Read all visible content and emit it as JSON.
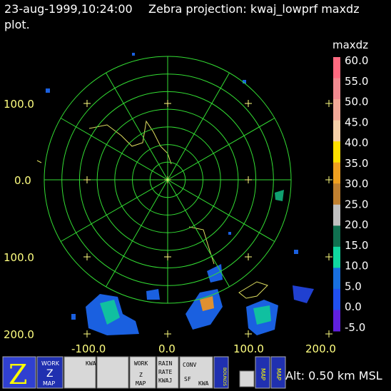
{
  "header": {
    "time": "23-aug-1999,10:24:00",
    "title": "Zebra projection: kwaj_lowprf maxdz",
    "title_cont": "plot."
  },
  "plot": {
    "y_labels": [
      "100.0",
      "0.0",
      "100.0",
      "200.0"
    ],
    "x_labels": [
      "-100.0",
      "0.0",
      "100.0",
      "200.0"
    ]
  },
  "colorbar": {
    "title": "maxdz",
    "labels": [
      "60.0",
      "55.0",
      "50.0",
      "45.0",
      "40.0",
      "35.0",
      "30.0",
      "25.0",
      "20.0",
      "15.0",
      "10.0",
      "5.0",
      "0.0",
      "-5.0"
    ],
    "colors": [
      "#ff6a80",
      "#f08a90",
      "#f2a898",
      "#f5d0a8",
      "#ffe000",
      "#f0a020",
      "#c08030",
      "#c0c0c0",
      "#107050",
      "#10d8a0",
      "#1870e0",
      "#2050f0",
      "#6020e0"
    ]
  },
  "toolbar": {
    "work1": [
      "WORK",
      "Z",
      "MAP"
    ],
    "kwaj": "KWAJ",
    "work2": [
      "WORK",
      "Z",
      "MAP"
    ],
    "rain": [
      "RAIN",
      "RATE",
      "KWAJ"
    ],
    "conv": [
      "CONV",
      "SF",
      "KWA"
    ],
    "bounds": "BOUNDS",
    "map1": "MAP",
    "map2": "MAP"
  },
  "status": "Alt: 0.50 km MSL"
}
